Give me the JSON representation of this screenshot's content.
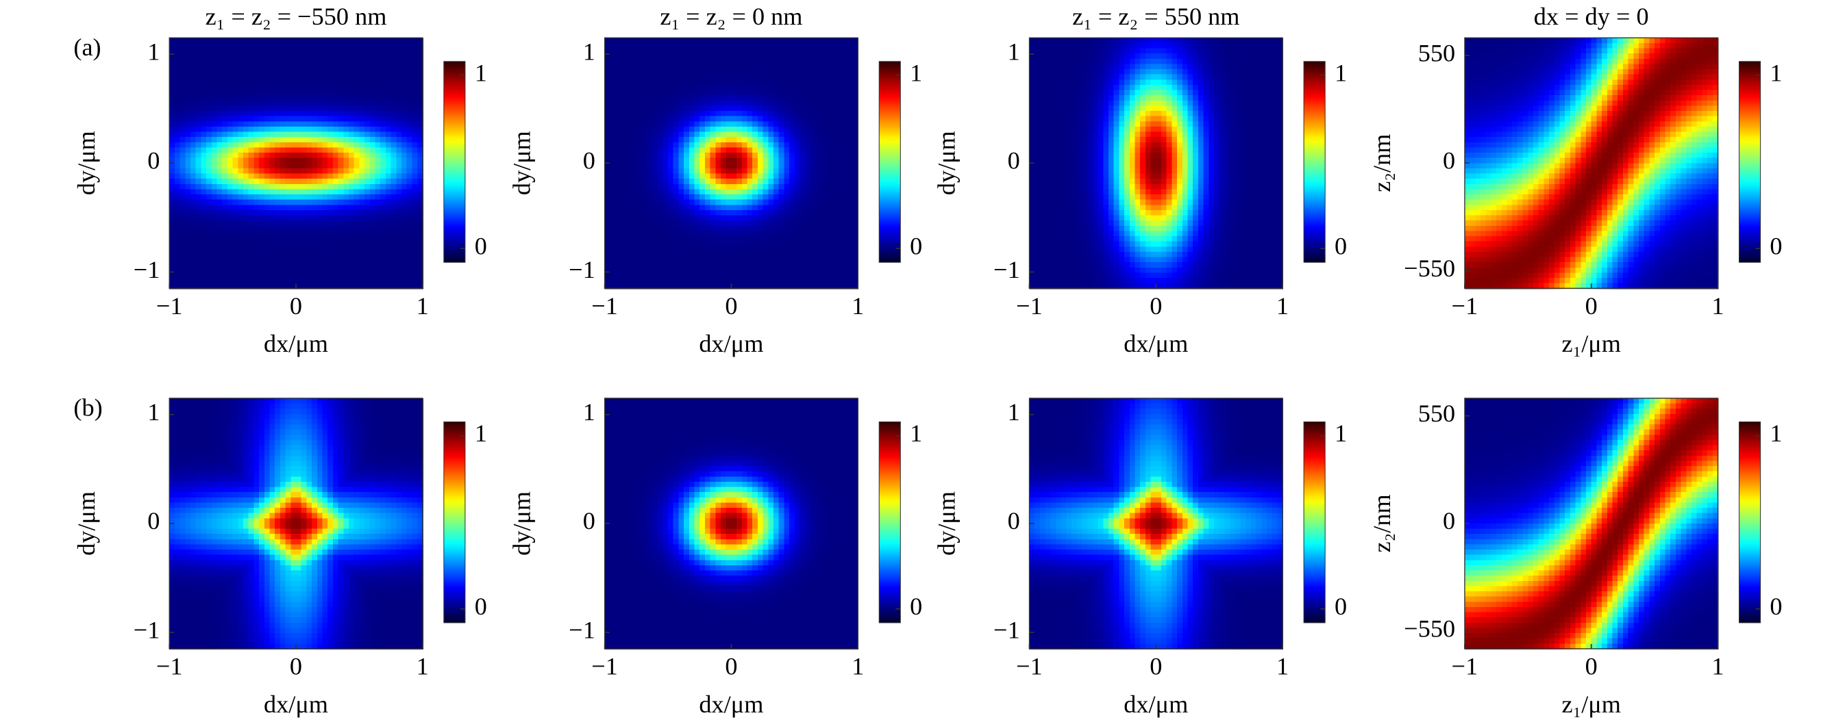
{
  "chart_data": [
    {
      "type": "heatmap",
      "annotation": "(a)",
      "title": "z₁ = z₂ = −550 nm",
      "xlabel": "dx/μm",
      "ylabel": "dy/μm",
      "colormap": "jet",
      "xlim": [
        -1,
        1
      ],
      "xticks": [
        {
          "value": -1,
          "label": "−1"
        },
        0,
        1
      ],
      "ylim": [
        -1.15,
        1.15
      ],
      "yticks": [
        {
          "value": -1,
          "label": "−1"
        },
        0,
        1
      ],
      "clim": [
        -0.08,
        1.08
      ],
      "cticks": [
        0,
        1
      ]
    },
    {
      "type": "heatmap",
      "title": "z₁ = z₂ = 0 nm",
      "xlabel": "dx/μm",
      "ylabel": "dy/μm",
      "colormap": "jet",
      "xlim": [
        -1,
        1
      ],
      "xticks": [
        {
          "value": -1,
          "label": "−1"
        },
        0,
        1
      ],
      "ylim": [
        -1.15,
        1.15
      ],
      "yticks": [
        {
          "value": -1,
          "label": "−1"
        },
        0,
        1
      ],
      "clim": [
        -0.08,
        1.08
      ],
      "cticks": [
        0,
        1
      ]
    },
    {
      "type": "heatmap",
      "title": "z₁ = z₂ = 550 nm",
      "xlabel": "dx/μm",
      "ylabel": "dy/μm",
      "colormap": "jet",
      "xlim": [
        -1,
        1
      ],
      "xticks": [
        {
          "value": -1,
          "label": "−1"
        },
        0,
        1
      ],
      "ylim": [
        -1.15,
        1.15
      ],
      "yticks": [
        {
          "value": -1,
          "label": "−1"
        },
        0,
        1
      ],
      "clim": [
        -0.08,
        1.08
      ],
      "cticks": [
        0,
        1
      ]
    },
    {
      "type": "heatmap",
      "title": "dx = dy = 0",
      "xlabel": "z₁/μm",
      "ylabel": "z₂/nm",
      "colormap": "jet",
      "xlim": [
        -1,
        1
      ],
      "xticks": [
        {
          "value": -1,
          "label": "−1"
        },
        0,
        1
      ],
      "ylim": [
        -640,
        640
      ],
      "yticks": [
        {
          "value": -550,
          "label": "−550"
        },
        0,
        550
      ],
      "clim": [
        -0.08,
        1.08
      ],
      "cticks": [
        0,
        1
      ]
    },
    {
      "type": "heatmap",
      "annotation": "(b)",
      "xlabel": "dx/μm",
      "ylabel": "dy/μm",
      "colormap": "jet",
      "xlim": [
        -1,
        1
      ],
      "xticks": [
        {
          "value": -1,
          "label": "−1"
        },
        0,
        1
      ],
      "ylim": [
        -1.15,
        1.15
      ],
      "yticks": [
        {
          "value": -1,
          "label": "−1"
        },
        0,
        1
      ],
      "clim": [
        -0.08,
        1.08
      ],
      "cticks": [
        0,
        1
      ]
    },
    {
      "type": "heatmap",
      "xlabel": "dx/μm",
      "ylabel": "dy/μm",
      "colormap": "jet",
      "xlim": [
        -1,
        1
      ],
      "xticks": [
        {
          "value": -1,
          "label": "−1"
        },
        0,
        1
      ],
      "ylim": [
        -1.15,
        1.15
      ],
      "yticks": [
        {
          "value": -1,
          "label": "−1"
        },
        0,
        1
      ],
      "clim": [
        -0.08,
        1.08
      ],
      "cticks": [
        0,
        1
      ]
    },
    {
      "type": "heatmap",
      "xlabel": "dx/μm",
      "ylabel": "dy/μm",
      "colormap": "jet",
      "xlim": [
        -1,
        1
      ],
      "xticks": [
        {
          "value": -1,
          "label": "−1"
        },
        0,
        1
      ],
      "ylim": [
        -1.15,
        1.15
      ],
      "yticks": [
        {
          "value": -1,
          "label": "−1"
        },
        0,
        1
      ],
      "clim": [
        -0.08,
        1.08
      ],
      "cticks": [
        0,
        1
      ]
    },
    {
      "type": "heatmap",
      "xlabel": "z₁/μm",
      "ylabel": "z₂/nm",
      "colormap": "jet",
      "xlim": [
        -1,
        1
      ],
      "xticks": [
        {
          "value": -1,
          "label": "−1"
        },
        0,
        1
      ],
      "ylim": [
        -640,
        640
      ],
      "yticks": [
        {
          "value": -550,
          "label": "−550"
        },
        0,
        550
      ],
      "clim": [
        -0.08,
        1.08
      ],
      "cticks": [
        0,
        1
      ]
    }
  ]
}
